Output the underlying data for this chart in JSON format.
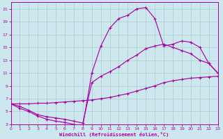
{
  "xlabel": "Windchill (Refroidissement éolien,°C)",
  "bg_color": "#cce8ee",
  "line_color": "#aa00aa",
  "grid_color": "#aacccc",
  "xmin": 0,
  "xmax": 23,
  "ymin": 3,
  "ymax": 22,
  "series1_x": [
    0,
    1,
    2,
    3,
    4,
    5,
    6,
    7,
    8,
    9,
    10,
    11,
    12,
    13,
    14,
    15,
    16,
    17,
    18,
    19,
    20,
    21,
    22,
    23
  ],
  "series1_y": [
    6.2,
    5.5,
    5.0,
    4.3,
    3.8,
    3.5,
    3.3,
    3.0,
    2.8,
    11.0,
    15.2,
    18.0,
    19.5,
    20.0,
    21.0,
    21.2,
    19.5,
    15.2,
    15.5,
    16.0,
    15.8,
    15.0,
    12.5,
    11.0
  ],
  "series2_x": [
    0,
    1,
    2,
    3,
    4,
    5,
    6,
    7,
    8,
    9,
    10,
    11,
    12,
    13,
    14,
    15,
    16,
    17,
    18,
    19,
    20,
    21,
    22,
    23
  ],
  "series2_y": [
    6.2,
    5.8,
    5.2,
    4.5,
    4.2,
    4.0,
    3.8,
    3.5,
    3.2,
    9.5,
    10.5,
    11.2,
    12.0,
    13.0,
    13.8,
    14.8,
    15.2,
    15.5,
    15.0,
    14.5,
    14.0,
    13.0,
    12.5,
    11.0
  ],
  "series3_x": [
    0,
    1,
    2,
    3,
    4,
    5,
    6,
    7,
    8,
    9,
    10,
    11,
    12,
    13,
    14,
    15,
    16,
    17,
    18,
    19,
    20,
    21,
    22,
    23
  ],
  "series3_y": [
    6.2,
    6.2,
    6.2,
    6.3,
    6.3,
    6.4,
    6.5,
    6.6,
    6.7,
    6.8,
    7.0,
    7.2,
    7.5,
    7.8,
    8.2,
    8.6,
    9.0,
    9.5,
    9.8,
    10.0,
    10.2,
    10.3,
    10.4,
    10.5
  ],
  "xticks": [
    0,
    1,
    2,
    3,
    4,
    5,
    6,
    7,
    8,
    9,
    10,
    11,
    12,
    13,
    14,
    15,
    16,
    17,
    18,
    19,
    20,
    21,
    22,
    23
  ],
  "yticks": [
    3,
    5,
    7,
    9,
    11,
    13,
    15,
    17,
    19,
    21
  ]
}
